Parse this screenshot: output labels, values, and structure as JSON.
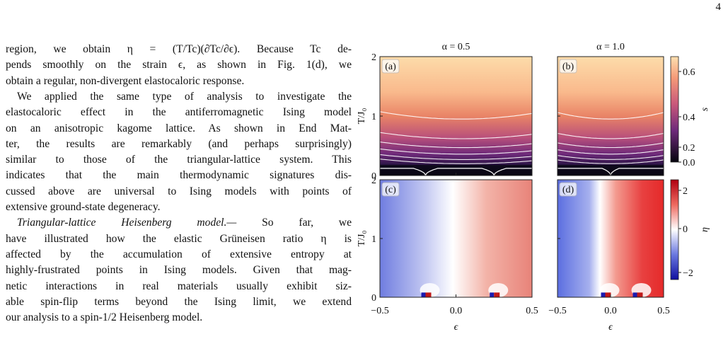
{
  "page_number": "4",
  "text": {
    "paragraphs": [
      {
        "lines": [
          "region, we obtain η = (T/Tc)(∂Tc/∂ϵ). Because Tc de-",
          "pends smoothly on the strain ϵ, as shown in Fig. 1(d), we",
          "obtain a regular, non-divergent elastocaloric response."
        ]
      },
      {
        "lines": [
          "We applied the same type of analysis to investigate the",
          "elastocaloric effect in the antiferromagnetic Ising model",
          "on an anisotropic kagome lattice. As shown in End Mat-",
          "ter, the results are remarkably (and perhaps surprisingly)",
          "similar to those of the triangular-lattice system. This",
          "indicates that the main thermodynamic signatures dis-",
          "cussed above are universal to Ising models with points of",
          "extensive ground-state degeneracy."
        ]
      },
      {
        "heading": "Triangular-lattice Heisenberg model.—",
        "lines": [
          "So far, we",
          "have illustrated how the elastic Grüneisen ratio η is",
          "affected by the accumulation of extensive entropy at",
          "highly-frustrated points in Ising models. Given that mag-",
          "netic interactions in real materials usually exhibit siz-",
          "able spin-flip terms beyond the Ising limit, we extend",
          "our analysis to a spin-1/2 Heisenberg model."
        ]
      }
    ]
  },
  "figure": {
    "columns": [
      {
        "title": "α = 0.5",
        "x_ticks": [
          "−0.5",
          "0.0",
          "0.5"
        ]
      },
      {
        "title": "α = 1.0",
        "x_ticks": [
          "−0.5",
          "0.0",
          "0.5"
        ]
      }
    ],
    "x_label": "ϵ",
    "rows": [
      {
        "y_label": "T/J₀",
        "y_ticks": [
          "0",
          "1",
          "2"
        ],
        "panels": [
          "(a)",
          "(b)"
        ],
        "colorbar": {
          "label": "s",
          "ticks": [
            "0.0",
            "0.2",
            "0.4",
            "0.6"
          ]
        }
      },
      {
        "y_label": "T/J₀",
        "y_ticks": [
          "0",
          "1",
          "2"
        ],
        "panels": [
          "(c)",
          "(d)"
        ],
        "colorbar": {
          "label": "η",
          "ticks": [
            "−2",
            "0",
            "2"
          ]
        }
      }
    ]
  }
}
